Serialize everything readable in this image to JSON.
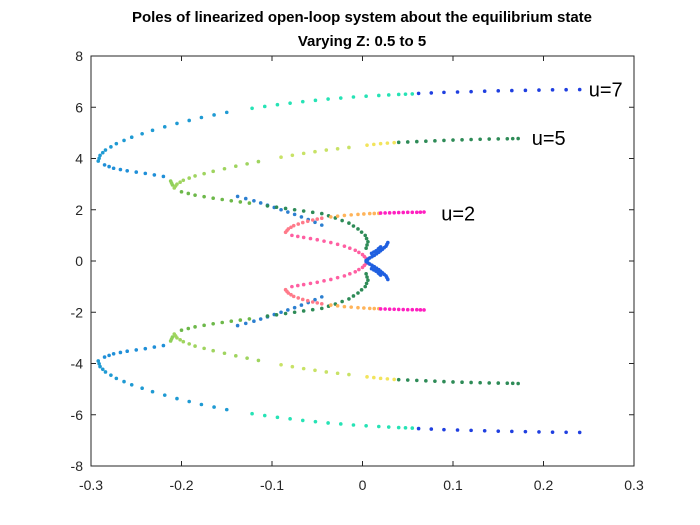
{
  "chart_data": {
    "type": "scatter",
    "title": "Poles of linearized open-loop system about the equilibrium state",
    "subtitle": "Varying Z: 0.5 to 5",
    "xlabel": "",
    "ylabel": "",
    "xlim": [
      -0.3,
      0.3
    ],
    "ylim": [
      -8,
      8
    ],
    "xticks": [
      "-0.3",
      "-0.2",
      "-0.1",
      "0",
      "0.1",
      "0.2",
      "0.3"
    ],
    "yticks": [
      "-8",
      "-6",
      "-4",
      "-2",
      "0",
      "2",
      "4",
      "6",
      "8"
    ],
    "grid": false,
    "annotations": [
      {
        "text": "u=7",
        "x": 0.25,
        "y": 6.7
      },
      {
        "text": "u=5",
        "x": 0.187,
        "y": 4.8
      },
      {
        "text": "u=2",
        "x": 0.087,
        "y": 1.85
      }
    ],
    "series": [
      {
        "curve": "u=7",
        "mirror": true,
        "segments": [
          {
            "color": "#1f9ad3",
            "points": [
              [
                -0.292,
                3.9
              ],
              [
                -0.29,
                4.12
              ],
              [
                -0.284,
                4.33
              ],
              [
                -0.272,
                4.58
              ],
              [
                -0.255,
                4.83
              ],
              [
                -0.232,
                5.1
              ],
              [
                -0.205,
                5.37
              ],
              [
                -0.178,
                5.6
              ],
              [
                -0.15,
                5.8
              ]
            ]
          },
          {
            "color": "#26e3b5",
            "points": [
              [
                -0.122,
                5.96
              ],
              [
                -0.094,
                6.1
              ],
              [
                -0.066,
                6.22
              ],
              [
                -0.038,
                6.32
              ],
              [
                -0.01,
                6.4
              ],
              [
                0.018,
                6.46
              ],
              [
                0.04,
                6.5
              ],
              [
                0.055,
                6.52
              ]
            ]
          },
          {
            "color": "#1f3fe0",
            "points": [
              [
                0.062,
                6.54
              ],
              [
                0.09,
                6.58
              ],
              [
                0.12,
                6.61
              ],
              [
                0.15,
                6.64
              ],
              [
                0.18,
                6.66
              ],
              [
                0.21,
                6.68
              ],
              [
                0.24,
                6.69
              ]
            ]
          },
          {
            "color": "#1f8fd8",
            "points": [
              [
                -0.285,
                3.75
              ],
              [
                -0.275,
                3.62
              ],
              [
                -0.26,
                3.52
              ],
              [
                -0.24,
                3.42
              ],
              [
                -0.22,
                3.3
              ]
            ]
          },
          {
            "color": "#8fd05a",
            "points": [
              [
                -0.212,
                3.12
              ],
              [
                -0.21,
                2.97
              ]
            ]
          }
        ]
      },
      {
        "curve": "u=5",
        "mirror": true,
        "segments": [
          {
            "color": "#9fd45f",
            "points": [
              [
                -0.208,
                2.85
              ],
              [
                -0.205,
                3.0
              ],
              [
                -0.198,
                3.15
              ],
              [
                -0.185,
                3.32
              ],
              [
                -0.165,
                3.5
              ],
              [
                -0.14,
                3.7
              ],
              [
                -0.115,
                3.88
              ]
            ]
          },
          {
            "color": "#c8e266",
            "points": [
              [
                -0.09,
                4.05
              ],
              [
                -0.065,
                4.2
              ],
              [
                -0.04,
                4.33
              ],
              [
                -0.015,
                4.43
              ]
            ]
          },
          {
            "color": "#f2e45c",
            "points": [
              [
                0.005,
                4.52
              ],
              [
                0.02,
                4.58
              ],
              [
                0.035,
                4.62
              ]
            ]
          },
          {
            "color": "#2e8b57",
            "points": [
              [
                0.04,
                4.63
              ],
              [
                0.06,
                4.66
              ],
              [
                0.08,
                4.69
              ],
              [
                0.1,
                4.72
              ],
              [
                0.12,
                4.74
              ],
              [
                0.14,
                4.76
              ],
              [
                0.16,
                4.77
              ],
              [
                0.172,
                4.78
              ]
            ]
          },
          {
            "color": "#6db84a",
            "points": [
              [
                -0.2,
                2.7
              ],
              [
                -0.185,
                2.57
              ],
              [
                -0.165,
                2.45
              ],
              [
                -0.145,
                2.35
              ],
              [
                -0.125,
                2.26
              ]
            ]
          },
          {
            "color": "#2c7fd0",
            "points": [
              [
                -0.138,
                2.52
              ],
              [
                -0.12,
                2.35
              ],
              [
                -0.105,
                2.18
              ],
              [
                -0.09,
                2.0
              ],
              [
                -0.075,
                1.82
              ],
              [
                -0.06,
                1.62
              ],
              [
                -0.045,
                1.4
              ]
            ]
          },
          {
            "color": "#2e8b57",
            "points": [
              [
                -0.105,
                2.15
              ],
              [
                -0.085,
                2.05
              ],
              [
                -0.065,
                1.95
              ],
              [
                -0.045,
                1.85
              ],
              [
                -0.03,
                1.68
              ],
              [
                -0.015,
                1.48
              ],
              [
                -0.005,
                1.25
              ],
              [
                0.003,
                1.0
              ],
              [
                0.006,
                0.75
              ],
              [
                0.004,
                0.5
              ]
            ]
          }
        ]
      },
      {
        "curve": "u=2",
        "mirror": true,
        "segments": [
          {
            "color": "#ff7a8a",
            "points": [
              [
                -0.085,
                1.12
              ],
              [
                -0.082,
                1.25
              ],
              [
                -0.076,
                1.38
              ],
              [
                -0.066,
                1.5
              ],
              [
                -0.055,
                1.6
              ],
              [
                -0.045,
                1.67
              ]
            ]
          },
          {
            "color": "#ffb45a",
            "points": [
              [
                -0.035,
                1.72
              ],
              [
                -0.02,
                1.78
              ],
              [
                -0.005,
                1.82
              ],
              [
                0.008,
                1.85
              ],
              [
                0.018,
                1.86
              ]
            ]
          },
          {
            "color": "#ff1fc0",
            "points": [
              [
                0.02,
                1.87
              ],
              [
                0.03,
                1.88
              ],
              [
                0.04,
                1.89
              ],
              [
                0.05,
                1.9
              ],
              [
                0.06,
                1.9
              ],
              [
                0.068,
                1.91
              ]
            ]
          },
          {
            "color": "#ff5fa2",
            "points": [
              [
                -0.078,
                1.0
              ],
              [
                -0.065,
                0.92
              ],
              [
                -0.05,
                0.83
              ],
              [
                -0.035,
                0.72
              ],
              [
                -0.02,
                0.58
              ],
              [
                -0.008,
                0.42
              ],
              [
                0.0,
                0.25
              ],
              [
                0.004,
                0.1
              ]
            ]
          },
          {
            "color": "#1f5fe0",
            "points": [
              [
                0.004,
                0.02
              ],
              [
                0.008,
                0.12
              ],
              [
                0.013,
                0.22
              ],
              [
                0.018,
                0.34
              ],
              [
                0.022,
                0.46
              ],
              [
                0.026,
                0.58
              ],
              [
                0.028,
                0.72
              ],
              [
                0.01,
                0.3
              ],
              [
                0.015,
                0.4
              ],
              [
                0.02,
                0.55
              ]
            ]
          }
        ]
      }
    ]
  }
}
